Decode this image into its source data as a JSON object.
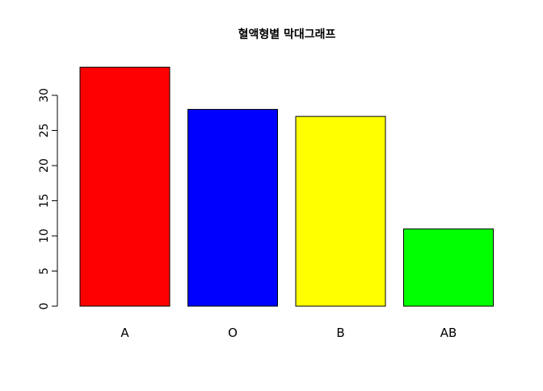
{
  "chart_data": {
    "type": "bar",
    "title": "혈액형별 막대그래프",
    "xlabel": "",
    "ylabel": "",
    "categories": [
      "A",
      "O",
      "B",
      "AB"
    ],
    "values": [
      34,
      28,
      27,
      11
    ],
    "colors": [
      "#ff0000",
      "#0000ff",
      "#ffff00",
      "#00ff00"
    ],
    "ylim": [
      0,
      34
    ],
    "yticks": [
      0,
      5,
      10,
      15,
      20,
      25,
      30
    ],
    "grid": false,
    "legend": "none"
  }
}
